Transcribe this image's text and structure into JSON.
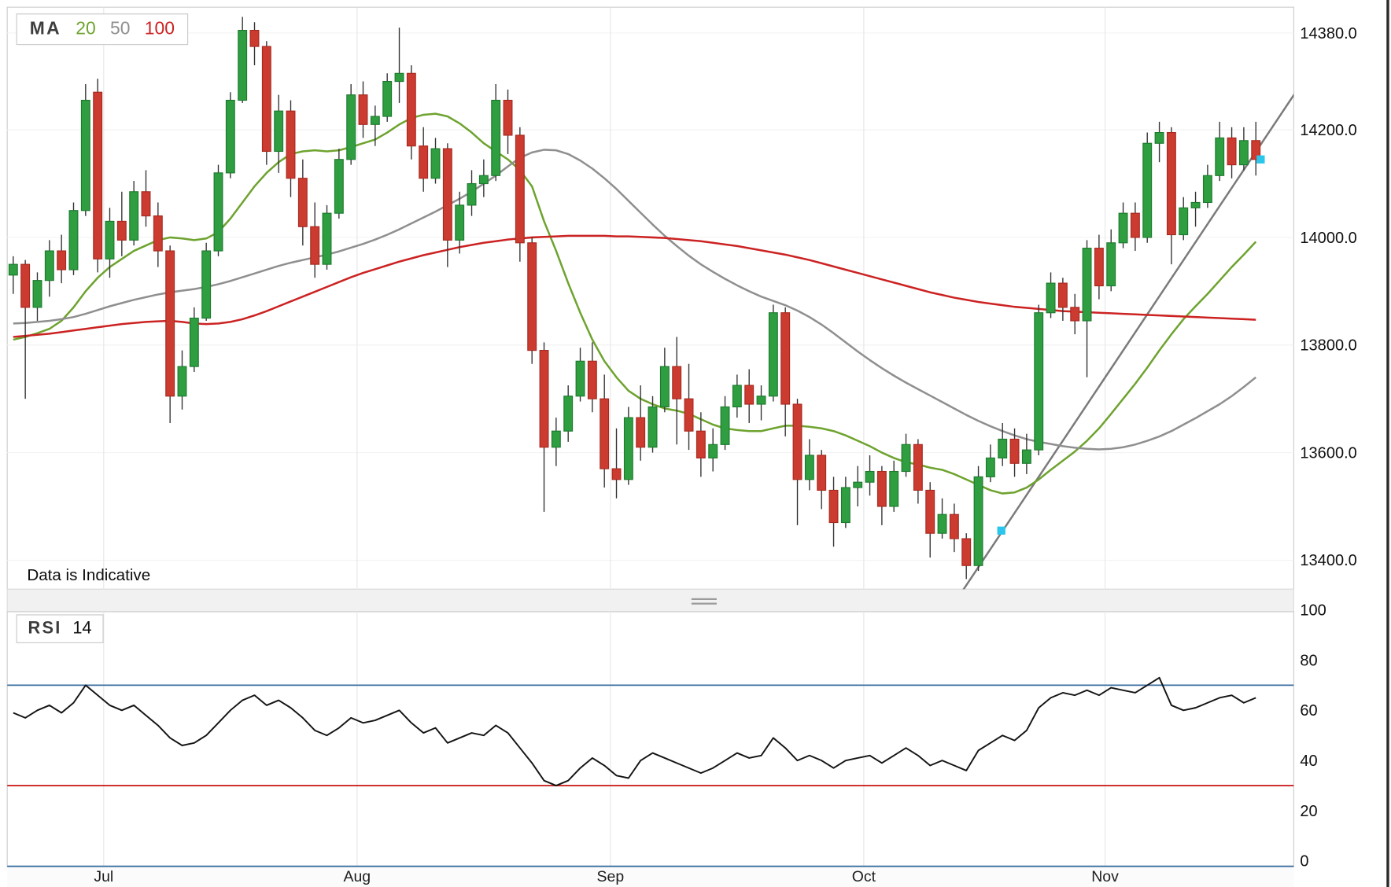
{
  "legend": {
    "ma_label": "MA",
    "periods": [
      {
        "label": "20",
        "color": "#6EA32F"
      },
      {
        "label": "50",
        "color": "#8F8F8F"
      },
      {
        "label": "100",
        "color": "#CC2222"
      }
    ]
  },
  "rsi_legend": {
    "label": "RSI",
    "period": "14"
  },
  "note_text": "Data is Indicative",
  "chart_data": {
    "type": "candlestick",
    "title": "",
    "price_pane": {
      "ylim": [
        13346,
        14428
      ],
      "ticks": [
        {
          "label": "14380.0",
          "value": 14380
        },
        {
          "label": "14200.0",
          "value": 14200
        },
        {
          "label": "14000.0",
          "value": 14000
        },
        {
          "label": "13800.0",
          "value": 13800
        },
        {
          "label": "13600.0",
          "value": 13600
        },
        {
          "label": "13400.0",
          "value": 13400
        }
      ],
      "candle_colors": {
        "up": "#2E9E41",
        "up_border": "#1E7A2E",
        "down": "#CB3B30",
        "down_border": "#A8291F",
        "wick": "#333333"
      },
      "candles": [
        [
          13930,
          13965,
          13895,
          13950
        ],
        [
          13950,
          13958,
          13700,
          13870
        ],
        [
          13870,
          13935,
          13845,
          13920
        ],
        [
          13920,
          13995,
          13890,
          13975
        ],
        [
          13975,
          14005,
          13915,
          13940
        ],
        [
          13940,
          14065,
          13930,
          14050
        ],
        [
          14050,
          14285,
          14040,
          14255
        ],
        [
          14270,
          14295,
          13935,
          13960
        ],
        [
          13960,
          14055,
          13925,
          14030
        ],
        [
          14030,
          14085,
          13965,
          13995
        ],
        [
          13995,
          14105,
          13985,
          14085
        ],
        [
          14085,
          14125,
          14020,
          14040
        ],
        [
          14040,
          14065,
          13945,
          13975
        ],
        [
          13975,
          13985,
          13655,
          13705
        ],
        [
          13705,
          13790,
          13680,
          13760
        ],
        [
          13760,
          13870,
          13750,
          13850
        ],
        [
          13850,
          13990,
          13845,
          13975
        ],
        [
          13975,
          14135,
          13965,
          14120
        ],
        [
          14120,
          14270,
          14110,
          14255
        ],
        [
          14255,
          14410,
          14250,
          14385
        ],
        [
          14385,
          14400,
          14320,
          14355
        ],
        [
          14355,
          14365,
          14135,
          14160
        ],
        [
          14160,
          14265,
          14120,
          14235
        ],
        [
          14235,
          14255,
          14075,
          14110
        ],
        [
          14110,
          14145,
          13985,
          14020
        ],
        [
          14020,
          14065,
          13925,
          13950
        ],
        [
          13950,
          14060,
          13940,
          14045
        ],
        [
          14045,
          14165,
          14035,
          14145
        ],
        [
          14145,
          14285,
          14135,
          14265
        ],
        [
          14265,
          14290,
          14185,
          14210
        ],
        [
          14210,
          14245,
          14170,
          14225
        ],
        [
          14225,
          14305,
          14215,
          14290
        ],
        [
          14290,
          14390,
          14250,
          14305
        ],
        [
          14305,
          14320,
          14145,
          14170
        ],
        [
          14170,
          14205,
          14085,
          14110
        ],
        [
          14110,
          14185,
          14100,
          14165
        ],
        [
          14165,
          14175,
          13945,
          13995
        ],
        [
          13995,
          14085,
          13970,
          14060
        ],
        [
          14060,
          14125,
          14040,
          14100
        ],
        [
          14100,
          14145,
          14075,
          14115
        ],
        [
          14115,
          14285,
          14105,
          14255
        ],
        [
          14255,
          14275,
          14155,
          14190
        ],
        [
          14190,
          14205,
          13955,
          13990
        ],
        [
          13990,
          14000,
          13765,
          13790
        ],
        [
          13790,
          13805,
          13490,
          13610
        ],
        [
          13610,
          13665,
          13575,
          13640
        ],
        [
          13640,
          13725,
          13620,
          13705
        ],
        [
          13705,
          13795,
          13695,
          13770
        ],
        [
          13770,
          13805,
          13675,
          13700
        ],
        [
          13700,
          13745,
          13535,
          13570
        ],
        [
          13570,
          13645,
          13515,
          13550
        ],
        [
          13550,
          13685,
          13540,
          13665
        ],
        [
          13665,
          13725,
          13585,
          13610
        ],
        [
          13610,
          13705,
          13600,
          13685
        ],
        [
          13685,
          13795,
          13675,
          13760
        ],
        [
          13760,
          13815,
          13615,
          13700
        ],
        [
          13700,
          13765,
          13605,
          13640
        ],
        [
          13640,
          13675,
          13555,
          13590
        ],
        [
          13590,
          13645,
          13565,
          13615
        ],
        [
          13615,
          13705,
          13605,
          13685
        ],
        [
          13685,
          13745,
          13665,
          13725
        ],
        [
          13725,
          13755,
          13655,
          13690
        ],
        [
          13690,
          13725,
          13660,
          13705
        ],
        [
          13705,
          13875,
          13695,
          13860
        ],
        [
          13860,
          13870,
          13630,
          13690
        ],
        [
          13690,
          13700,
          13465,
          13550
        ],
        [
          13550,
          13625,
          13530,
          13595
        ],
        [
          13595,
          13605,
          13495,
          13530
        ],
        [
          13530,
          13555,
          13425,
          13470
        ],
        [
          13470,
          13555,
          13460,
          13535
        ],
        [
          13535,
          13575,
          13500,
          13545
        ],
        [
          13545,
          13595,
          13520,
          13565
        ],
        [
          13565,
          13575,
          13465,
          13500
        ],
        [
          13500,
          13585,
          13490,
          13565
        ],
        [
          13565,
          13635,
          13555,
          13615
        ],
        [
          13615,
          13625,
          13505,
          13530
        ],
        [
          13530,
          13545,
          13405,
          13450
        ],
        [
          13450,
          13515,
          13440,
          13485
        ],
        [
          13485,
          13505,
          13415,
          13440
        ],
        [
          13440,
          13450,
          13365,
          13390
        ],
        [
          13390,
          13575,
          13380,
          13555
        ],
        [
          13555,
          13615,
          13545,
          13590
        ],
        [
          13590,
          13655,
          13575,
          13625
        ],
        [
          13625,
          13645,
          13555,
          13580
        ],
        [
          13580,
          13635,
          13560,
          13605
        ],
        [
          13605,
          13875,
          13595,
          13860
        ],
        [
          13860,
          13935,
          13850,
          13915
        ],
        [
          13915,
          13925,
          13845,
          13870
        ],
        [
          13870,
          13895,
          13820,
          13845
        ],
        [
          13845,
          13995,
          13740,
          13980
        ],
        [
          13980,
          14005,
          13885,
          13910
        ],
        [
          13910,
          14015,
          13900,
          13990
        ],
        [
          13990,
          14065,
          13980,
          14045
        ],
        [
          14045,
          14065,
          13975,
          14000
        ],
        [
          14000,
          14195,
          13990,
          14175
        ],
        [
          14175,
          14215,
          14140,
          14195
        ],
        [
          14195,
          14205,
          13950,
          14005
        ],
        [
          14005,
          14075,
          13995,
          14055
        ],
        [
          14055,
          14085,
          14020,
          14065
        ],
        [
          14065,
          14135,
          14055,
          14115
        ],
        [
          14115,
          14215,
          14105,
          14185
        ],
        [
          14185,
          14205,
          14110,
          14135
        ],
        [
          14135,
          14205,
          14125,
          14180
        ],
        [
          14180,
          14215,
          14115,
          14145
        ]
      ],
      "overlays": [
        {
          "id": "ma20",
          "name": "MA 20",
          "color": "#6EA32F",
          "values": [
            13810,
            13815,
            13822,
            13830,
            13845,
            13870,
            13900,
            13925,
            13945,
            13960,
            13975,
            13985,
            13995,
            14000,
            13998,
            13995,
            13998,
            14010,
            14035,
            14065,
            14095,
            14120,
            14140,
            14155,
            14160,
            14162,
            14160,
            14162,
            14168,
            14175,
            14182,
            14195,
            14210,
            14222,
            14228,
            14230,
            14225,
            14212,
            14195,
            14175,
            14160,
            14145,
            14125,
            14095,
            14030,
            13975,
            13915,
            13860,
            13810,
            13770,
            13740,
            13715,
            13700,
            13690,
            13682,
            13678,
            13672,
            13662,
            13652,
            13645,
            13642,
            13640,
            13640,
            13645,
            13650,
            13650,
            13648,
            13645,
            13640,
            13632,
            13622,
            13612,
            13600,
            13590,
            13582,
            13578,
            13572,
            13568,
            13560,
            13550,
            13540,
            13530,
            13524,
            13526,
            13535,
            13550,
            13568,
            13585,
            13602,
            13622,
            13645,
            13672,
            13700,
            13728,
            13758,
            13790,
            13820,
            13848,
            13872,
            13895,
            13920,
            13945,
            13968,
            13992
          ]
        },
        {
          "id": "ma50",
          "name": "MA 50",
          "color": "#8F8F8F",
          "values": [
            13840,
            13841,
            13843,
            13845,
            13848,
            13852,
            13858,
            13865,
            13872,
            13878,
            13884,
            13889,
            13894,
            13898,
            13901,
            13904,
            13908,
            13913,
            13919,
            13926,
            13933,
            13940,
            13947,
            13953,
            13958,
            13963,
            13968,
            13974,
            13981,
            13988,
            13996,
            14005,
            14015,
            14026,
            14037,
            14048,
            14060,
            14072,
            14085,
            14100,
            14115,
            14132,
            14148,
            14158,
            14163,
            14162,
            14155,
            14143,
            14128,
            14110,
            14090,
            14068,
            14046,
            14024,
            14003,
            13984,
            13966,
            13950,
            13936,
            13923,
            13911,
            13900,
            13890,
            13882,
            13874,
            13864,
            13852,
            13838,
            13822,
            13805,
            13788,
            13772,
            13757,
            13743,
            13730,
            13718,
            13706,
            13694,
            13682,
            13670,
            13659,
            13649,
            13640,
            13632,
            13625,
            13620,
            13616,
            13612,
            13609,
            13607,
            13606,
            13607,
            13610,
            13615,
            13622,
            13630,
            13640,
            13652,
            13664,
            13677,
            13690,
            13705,
            13722,
            13740
          ]
        },
        {
          "id": "ma100",
          "name": "MA 100",
          "color": "#CC2222",
          "values": [
            13815,
            13817,
            13819,
            13821,
            13824,
            13827,
            13830,
            13833,
            13836,
            13839,
            13841,
            13843,
            13844,
            13845,
            13843,
            13840,
            13839,
            13840,
            13843,
            13848,
            13855,
            13863,
            13872,
            13881,
            13890,
            13899,
            13908,
            13917,
            13926,
            13934,
            13941,
            13948,
            13955,
            13961,
            13967,
            13972,
            13977,
            13982,
            13986,
            13990,
            13993,
            13996,
            13998,
            14000,
            14001,
            14002,
            14003,
            14003,
            14003,
            14003,
            14002,
            14002,
            14001,
            14000,
            13999,
            13997,
            13995,
            13993,
            13990,
            13987,
            13984,
            13980,
            13976,
            13972,
            13968,
            13963,
            13958,
            13952,
            13946,
            13940,
            13934,
            13928,
            13922,
            13916,
            13910,
            13904,
            13898,
            13893,
            13888,
            13884,
            13880,
            13877,
            13874,
            13871,
            13869,
            13867,
            13865,
            13863,
            13862,
            13861,
            13860,
            13859,
            13858,
            13857,
            13856,
            13855,
            13854,
            13853,
            13852,
            13851,
            13850,
            13849,
            13848,
            13847
          ]
        }
      ],
      "trendline": {
        "from_index": 78.6,
        "from_price": 13340,
        "to_index": 106.3,
        "to_price": 14270,
        "color": "#7B7B7B"
      },
      "marker_color": "#2BC6EC",
      "markers": [
        {
          "index": 81.9,
          "price": 13455
        },
        {
          "index": 103.4,
          "price": 14145
        }
      ]
    },
    "rsi_pane": {
      "type": "line",
      "period": 14,
      "ylim": [
        0,
        100
      ],
      "ticks": [
        {
          "label": "100",
          "value": 100
        },
        {
          "label": "80",
          "value": 80
        },
        {
          "label": "60",
          "value": 60
        },
        {
          "label": "40",
          "value": 40
        },
        {
          "label": "20",
          "value": 20
        },
        {
          "label": "0",
          "value": 0
        }
      ],
      "overbought": {
        "value": 70,
        "color": "#3A6E9F"
      },
      "oversold": {
        "value": 30,
        "color": "#CC2222"
      },
      "line_color": "#141414",
      "values": [
        59,
        57,
        60,
        62,
        59,
        63,
        70,
        66,
        62,
        60,
        62,
        58,
        54,
        49,
        46,
        47,
        50,
        55,
        60,
        64,
        66,
        62,
        64,
        61,
        57,
        52,
        50,
        53,
        57,
        55,
        56,
        58,
        60,
        55,
        51,
        53,
        47,
        49,
        51,
        50,
        54,
        51,
        45,
        39,
        32,
        30,
        32,
        37,
        41,
        38,
        34,
        33,
        40,
        43,
        41,
        39,
        37,
        35,
        37,
        40,
        43,
        41,
        42,
        49,
        45,
        40,
        42,
        40,
        37,
        40,
        41,
        42,
        39,
        42,
        45,
        42,
        38,
        40,
        38,
        36,
        44,
        47,
        50,
        48,
        52,
        61,
        65,
        67,
        66,
        68,
        66,
        69,
        68,
        67,
        70,
        73,
        62,
        60,
        61,
        63,
        65,
        66,
        63,
        65
      ]
    },
    "x_axis": {
      "candle_count": 104,
      "months": [
        {
          "label": "Jul",
          "index": 8
        },
        {
          "label": "Aug",
          "index": 29
        },
        {
          "label": "Sep",
          "index": 50
        },
        {
          "label": "Oct",
          "index": 71
        },
        {
          "label": "Nov",
          "index": 91
        }
      ]
    }
  }
}
